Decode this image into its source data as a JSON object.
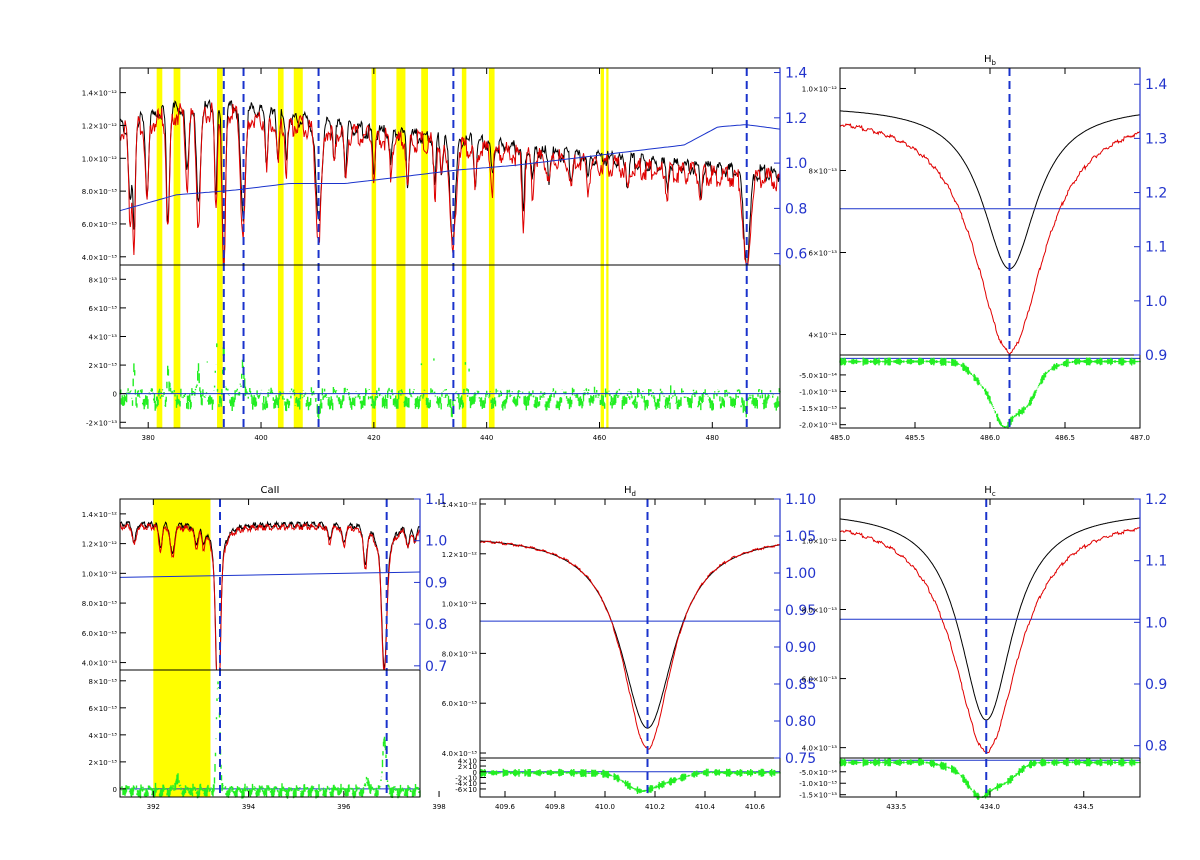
{
  "colors": {
    "observed": "#000000",
    "model": "#e00000",
    "ratio": "#1a33cc",
    "residual": "#22ee22",
    "highlight": "#ffff00",
    "marker": "#1a33cc",
    "right_axis": "#2233cc"
  },
  "chart_data": [
    {
      "id": "overview",
      "type": "line",
      "title": "",
      "xlim": [
        375,
        492
      ],
      "xticks": [
        "380",
        "400",
        "420",
        "440",
        "460",
        "480"
      ],
      "xtick_values": [
        380,
        400,
        420,
        440,
        460,
        480
      ],
      "top": {
        "ylim": [
          3.5,
          15.5
        ],
        "yticks": [
          "4.0×10⁻¹³",
          "6.0×10⁻¹³",
          "8.0×10⁻¹³",
          "1.0×10⁻¹²",
          "1.2×10⁻¹²",
          "1.4×10⁻¹²"
        ],
        "ytick_values": [
          4,
          6,
          8,
          10,
          12,
          14
        ],
        "right_ylim": [
          0.55,
          1.42
        ],
        "right_yticks": [
          "0.6",
          "0.8",
          "1.0",
          "1.2",
          "1.4"
        ],
        "right_ytick_values": [
          0.6,
          0.8,
          1.0,
          1.2,
          1.4
        ]
      },
      "bottom": {
        "ylim": [
          -2.4,
          9.0
        ],
        "yticks": [
          "-2×10⁻¹³",
          "0",
          "2×10⁻¹³",
          "4×10⁻¹³",
          "6×10⁻¹³",
          "8×10⁻¹³"
        ],
        "ytick_values": [
          -2,
          0,
          2,
          4,
          6,
          8
        ]
      },
      "continuum": [
        [
          375,
          12.2
        ],
        [
          385,
          13.3
        ],
        [
          395,
          13.4
        ],
        [
          405,
          12.7
        ],
        [
          420,
          11.9
        ],
        [
          435,
          11.4
        ],
        [
          450,
          10.6
        ],
        [
          465,
          10.1
        ],
        [
          480,
          9.6
        ],
        [
          492,
          9.3
        ]
      ],
      "model_offset": -0.3,
      "lines": [
        [
          376.8,
          5.0,
          0.4
        ],
        [
          377.5,
          6.5,
          0.3
        ],
        [
          379.8,
          4.5,
          0.4
        ],
        [
          383.5,
          6.5,
          0.4
        ],
        [
          386.9,
          4.0,
          0.4
        ],
        [
          388.9,
          6.0,
          0.5
        ],
        [
          392.0,
          5.5,
          0.3
        ],
        [
          393.4,
          9.5,
          0.4
        ],
        [
          396.8,
          6.5,
          0.6
        ],
        [
          401.0,
          3.0,
          0.3
        ],
        [
          403.0,
          2.5,
          0.3
        ],
        [
          404.5,
          2.5,
          0.3
        ],
        [
          410.2,
          6.0,
          0.7
        ],
        [
          413.0,
          2.0,
          0.3
        ],
        [
          415.0,
          3.0,
          0.3
        ],
        [
          420.0,
          2.5,
          0.3
        ],
        [
          423.0,
          2.0,
          0.3
        ],
        [
          426.0,
          3.0,
          0.3
        ],
        [
          430.8,
          3.0,
          0.3
        ],
        [
          432.0,
          2.0,
          0.3
        ],
        [
          434.0,
          6.0,
          0.7
        ],
        [
          438.0,
          2.5,
          0.3
        ],
        [
          441.0,
          2.0,
          0.3
        ],
        [
          446.5,
          4.0,
          0.3
        ],
        [
          448.1,
          2.0,
          0.3
        ],
        [
          451.0,
          1.5,
          0.3
        ],
        [
          455.0,
          1.5,
          0.3
        ],
        [
          458.0,
          1.5,
          0.3
        ],
        [
          465.0,
          1.5,
          0.3
        ],
        [
          472.0,
          1.5,
          0.3
        ],
        [
          478.0,
          1.5,
          0.3
        ],
        [
          486.1,
          5.5,
          0.8
        ]
      ],
      "ratio_curve": [
        [
          375,
          0.79
        ],
        [
          385,
          0.86
        ],
        [
          395,
          0.88
        ],
        [
          405,
          0.91
        ],
        [
          415,
          0.91
        ],
        [
          425,
          0.94
        ],
        [
          435,
          0.97
        ],
        [
          445,
          0.99
        ],
        [
          455,
          1.02
        ],
        [
          465,
          1.05
        ],
        [
          475,
          1.08
        ],
        [
          481,
          1.16
        ],
        [
          486,
          1.17
        ],
        [
          492,
          1.15
        ]
      ],
      "highlight_bands": [
        [
          381.5,
          382.5
        ],
        [
          384.5,
          385.7
        ],
        [
          392.2,
          393.2
        ],
        [
          403.0,
          404.0
        ],
        [
          405.8,
          407.4
        ],
        [
          419.6,
          420.4
        ],
        [
          424.0,
          425.6
        ],
        [
          428.4,
          429.6
        ],
        [
          435.6,
          436.4
        ],
        [
          440.4,
          441.4
        ],
        [
          460.2,
          460.8
        ],
        [
          461.2,
          461.6
        ]
      ],
      "markers": [
        393.4,
        396.9,
        410.2,
        434.1,
        486.1
      ]
    },
    {
      "id": "hb",
      "type": "line",
      "title": "Hβ",
      "title_main": "H",
      "title_sub": "b",
      "xlim": [
        485.0,
        487.0
      ],
      "xticks": [
        "485.0",
        "485.5",
        "486.0",
        "486.5",
        "487.0"
      ],
      "xtick_values": [
        485.0,
        485.5,
        486.0,
        486.5,
        487.0
      ],
      "top": {
        "ylim": [
          3.5,
          10.5
        ],
        "yticks": [
          "4×10⁻¹³",
          "6×10⁻¹³",
          "8×10⁻¹³",
          "1.0×10⁻¹²"
        ],
        "ytick_values": [
          4,
          6,
          8,
          10
        ],
        "right_ylim": [
          0.9,
          1.43
        ],
        "right_yticks": [
          "0.9",
          "1.0",
          "1.1",
          "1.2",
          "1.3",
          "1.4"
        ],
        "right_ytick_values": [
          0.9,
          1.0,
          1.1,
          1.2,
          1.3,
          1.4
        ]
      },
      "bottom": {
        "ylim": [
          -2.1,
          0.1
        ],
        "yticks": [
          "-5.0×10⁻¹⁴",
          "-1.0×10⁻¹³",
          "-1.5×10⁻¹³",
          "-2.0×10⁻¹³"
        ],
        "ytick_values": [
          -0.5,
          -1.0,
          -1.5,
          -2.0
        ]
      },
      "line_center": 486.13,
      "continuum_obs": 9.6,
      "depth_obs": 4.0,
      "width_obs": 0.22,
      "continuum_model": 9.5,
      "depth_model": 5.9,
      "width_model": 0.28,
      "residual_peak": -1.95,
      "ratio_level": 1.17,
      "markers": [
        486.13
      ]
    },
    {
      "id": "caii",
      "type": "line",
      "title": "CaII",
      "xlim": [
        391.3,
        397.6
      ],
      "xticks": [
        "392",
        "394",
        "396",
        "398"
      ],
      "xtick_values": [
        392.0,
        394.0,
        396.0,
        398.0
      ],
      "top": {
        "ylim": [
          3.5,
          15.0
        ],
        "yticks": [
          "4.0×10⁻¹³",
          "6.0×10⁻¹³",
          "8.0×10⁻¹³",
          "1.0×10⁻¹²",
          "1.2×10⁻¹²",
          "1.4×10⁻¹²"
        ],
        "ytick_values": [
          4,
          6,
          8,
          10,
          12,
          14
        ],
        "right_ylim": [
          0.69,
          1.1
        ],
        "right_yticks": [
          "0.7",
          "0.8",
          "0.9",
          "1.0",
          "1.1"
        ],
        "right_ytick_values": [
          0.7,
          0.8,
          0.9,
          1.0,
          1.1
        ]
      },
      "bottom": {
        "ylim": [
          -0.6,
          8.8
        ],
        "yticks": [
          "0",
          "2×10⁻¹³",
          "4×10⁻¹³",
          "6×10⁻¹³",
          "8×10⁻¹³"
        ],
        "ytick_values": [
          0,
          2,
          4,
          6,
          8
        ]
      },
      "highlight_bands": [
        [
          392.0,
          393.2
        ]
      ],
      "markers": [
        393.4,
        396.9
      ],
      "ratio_range": [
        0.912,
        0.925
      ]
    },
    {
      "id": "hd",
      "type": "line",
      "title": "Hδ",
      "title_main": "H",
      "title_sub": "d",
      "xlim": [
        409.5,
        410.7
      ],
      "xticks": [
        "409.6",
        "409.8",
        "410.0",
        "410.2",
        "410.4",
        "410.6"
      ],
      "xtick_values": [
        409.6,
        409.8,
        410.0,
        410.2,
        410.4,
        410.6
      ],
      "top": {
        "ylim": [
          3.8,
          14.2
        ],
        "yticks": [
          "4.0×10⁻¹³",
          "6.0×10⁻¹³",
          "8.0×10⁻¹³",
          "1.0×10⁻¹²",
          "1.2×10⁻¹²",
          "1.4×10⁻¹²"
        ],
        "ytick_values": [
          4,
          6,
          8,
          10,
          12,
          14
        ],
        "right_ylim": [
          0.75,
          1.1
        ],
        "right_yticks": [
          "0.75",
          "0.80",
          "0.85",
          "0.90",
          "0.95",
          "1.00",
          "1.05",
          "1.10"
        ],
        "right_ytick_values": [
          0.75,
          0.8,
          0.85,
          0.9,
          0.95,
          1.0,
          1.05,
          1.1
        ]
      },
      "bottom": {
        "ylim": [
          -2.2,
          1.2
        ],
        "yticks": [
          "4×10",
          "2×10",
          "0",
          "-2×10",
          "-4×10",
          "-6×10"
        ],
        "ytick_values": [
          1.0,
          0.5,
          0.0,
          -0.5,
          -1.0,
          -1.5
        ]
      },
      "line_center": 410.17,
      "continuum_obs": 12.8,
      "depth_obs": 7.8,
      "width_obs": 0.13,
      "continuum_model": 12.8,
      "depth_model": 8.6,
      "width_model": 0.12,
      "residual_peak": -1.6,
      "ratio_level": 0.935,
      "markers": [
        410.17
      ]
    },
    {
      "id": "hg",
      "type": "line",
      "title": "Hγ",
      "title_main": "H",
      "title_sub": "c",
      "xlim": [
        433.2,
        434.8
      ],
      "xticks": [
        "433.5",
        "434.0",
        "434.5"
      ],
      "xtick_values": [
        433.5,
        434.0,
        434.5
      ],
      "top": {
        "ylim": [
          3.7,
          11.2
        ],
        "yticks": [
          "4.0×10⁻¹³",
          "6.0×10⁻¹³",
          "8.0×10⁻¹³",
          "1.0×10⁻¹²"
        ],
        "ytick_values": [
          4,
          6,
          8,
          10
        ],
        "right_ylim": [
          0.78,
          1.2
        ],
        "right_yticks": [
          "0.8",
          "0.9",
          "1.0",
          "1.1",
          "1.2"
        ],
        "right_ytick_values": [
          0.8,
          0.9,
          1.0,
          1.1,
          1.2
        ]
      },
      "bottom": {
        "ylim": [
          -1.6,
          0.1
        ],
        "yticks": [
          "-5.0×10⁻¹⁴",
          "-1.0×10⁻¹³",
          "-1.5×10⁻¹³"
        ],
        "ytick_values": [
          -0.5,
          -1.0,
          -1.5
        ]
      },
      "line_center": 433.98,
      "continuum_obs": 10.9,
      "depth_obs": 6.1,
      "width_obs": 0.17,
      "continuum_model": 10.8,
      "depth_model": 6.9,
      "width_model": 0.21,
      "residual_peak": -1.5,
      "ratio_level": 1.005,
      "markers": [
        433.98
      ]
    }
  ]
}
